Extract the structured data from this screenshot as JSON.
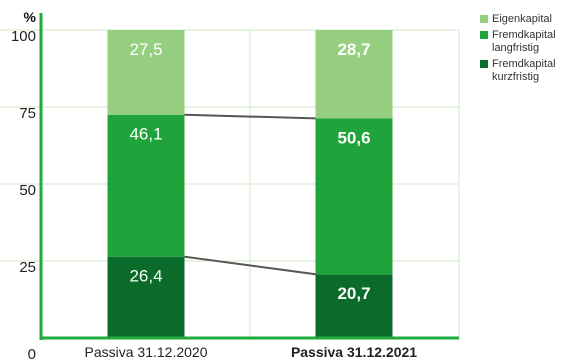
{
  "chart_data": {
    "type": "bar",
    "stacked": true,
    "unit_label": "%",
    "categories": [
      "Passiva 31.12.2020",
      "Passiva 31.12.2021"
    ],
    "series": [
      {
        "name": "Fremdkapital kurzfristig",
        "values": [
          26.4,
          20.7
        ],
        "labels": [
          "26,4",
          "20,7"
        ],
        "color": "#0b6b2a"
      },
      {
        "name": "Fremdkapital langfristig",
        "values": [
          46.1,
          50.6
        ],
        "labels": [
          "46,1",
          "50,6"
        ],
        "color": "#21a33c"
      },
      {
        "name": "Eigenkapital",
        "values": [
          27.5,
          28.7
        ],
        "labels": [
          "27,5",
          "28,7"
        ],
        "color": "#96cf80"
      }
    ],
    "bold_category_index": 1,
    "yticks": [
      0,
      25,
      50,
      75,
      100
    ],
    "ylim": [
      0,
      100
    ],
    "grid": true,
    "legend_position": "top-right",
    "connector_lines": true,
    "axis_color": "#1faa3c",
    "connector_color": "#555555"
  }
}
